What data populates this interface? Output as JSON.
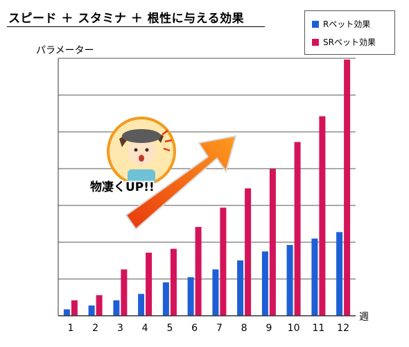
{
  "title": "スピード ＋ スタミナ ＋ 根性に与える効果",
  "callout": "物凄くUP!!",
  "chart_data": {
    "type": "bar",
    "ylabel": "パラメーター",
    "xlabel": "週",
    "categories": [
      "1",
      "2",
      "3",
      "4",
      "5",
      "6",
      "7",
      "8",
      "9",
      "10",
      "11",
      "12"
    ],
    "ylim": [
      0,
      100
    ],
    "grid": true,
    "legend_position": "top-right",
    "series": [
      {
        "name": "Rペット効果",
        "color": "#1f5fd6",
        "values": [
          2.5,
          4,
          6,
          8.5,
          13,
          15,
          18,
          21.5,
          25,
          27.5,
          30,
          32.5
        ]
      },
      {
        "name": "SRペット効果",
        "color": "#d4145a",
        "values": [
          6,
          8,
          18,
          24.5,
          26,
          34.5,
          42,
          49.5,
          57,
          67.5,
          77.5,
          99.5
        ]
      }
    ]
  }
}
